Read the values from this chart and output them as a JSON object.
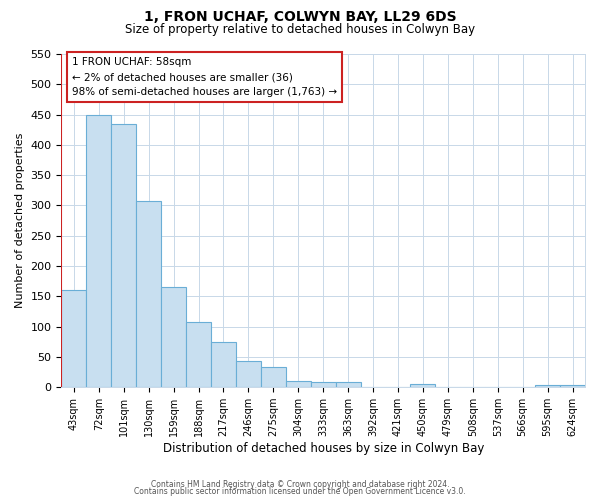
{
  "title": "1, FRON UCHAF, COLWYN BAY, LL29 6DS",
  "subtitle": "Size of property relative to detached houses in Colwyn Bay",
  "xlabel": "Distribution of detached houses by size in Colwyn Bay",
  "ylabel": "Number of detached properties",
  "bar_labels": [
    "43sqm",
    "72sqm",
    "101sqm",
    "130sqm",
    "159sqm",
    "188sqm",
    "217sqm",
    "246sqm",
    "275sqm",
    "304sqm",
    "333sqm",
    "363sqm",
    "392sqm",
    "421sqm",
    "450sqm",
    "479sqm",
    "508sqm",
    "537sqm",
    "566sqm",
    "595sqm",
    "624sqm"
  ],
  "bar_values": [
    160,
    450,
    435,
    308,
    165,
    108,
    75,
    43,
    33,
    10,
    8,
    8,
    0,
    0,
    5,
    0,
    0,
    0,
    0,
    3,
    3
  ],
  "bar_color": "#c8dff0",
  "bar_edge_color": "#6aaed6",
  "highlight_color": "#cc2222",
  "ylim": [
    0,
    550
  ],
  "yticks": [
    0,
    50,
    100,
    150,
    200,
    250,
    300,
    350,
    400,
    450,
    500,
    550
  ],
  "annotation_title": "1 FRON UCHAF: 58sqm",
  "annotation_line1": "← 2% of detached houses are smaller (36)",
  "annotation_line2": "98% of semi-detached houses are larger (1,763) →",
  "footer_line1": "Contains HM Land Registry data © Crown copyright and database right 2024.",
  "footer_line2": "Contains public sector information licensed under the Open Government Licence v3.0.",
  "background_color": "#ffffff",
  "grid_color": "#c8d8e8"
}
